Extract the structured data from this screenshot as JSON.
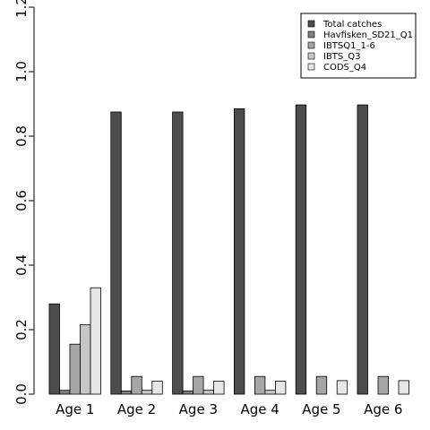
{
  "chart_data": {
    "type": "bar",
    "title": "",
    "xlabel": "",
    "ylabel": "",
    "ylim": [
      0,
      1.2
    ],
    "yticks": [
      "0.0",
      "0.2",
      "0.4",
      "0.6",
      "0.8",
      "1.0",
      "1.2"
    ],
    "grid": false,
    "legend_position": "top-right",
    "categories": [
      "Age 1",
      "Age 2",
      "Age 3",
      "Age 4",
      "Age 5",
      "Age 6"
    ],
    "series": [
      {
        "name": "Total catches",
        "color": "#4d4d4d",
        "values": [
          0.28,
          0.875,
          0.875,
          0.885,
          0.897,
          0.897
        ]
      },
      {
        "name": "Havfisken_SD21_Q1",
        "color": "#7f7f7f",
        "values": [
          0.012,
          0.01,
          0.01,
          0,
          0,
          0
        ]
      },
      {
        "name": "IBTSQ1_1-6",
        "color": "#a6a6a6",
        "values": [
          0.155,
          0.055,
          0.055,
          0.055,
          0.055,
          0.055
        ]
      },
      {
        "name": "IBTS_Q3",
        "color": "#c6c6c6",
        "values": [
          0.215,
          0.012,
          0.012,
          0.012,
          0,
          0
        ]
      },
      {
        "name": "CODS_Q4",
        "color": "#e6e6e6",
        "values": [
          0.33,
          0.04,
          0.04,
          0.04,
          0.042,
          0.042
        ]
      }
    ]
  }
}
